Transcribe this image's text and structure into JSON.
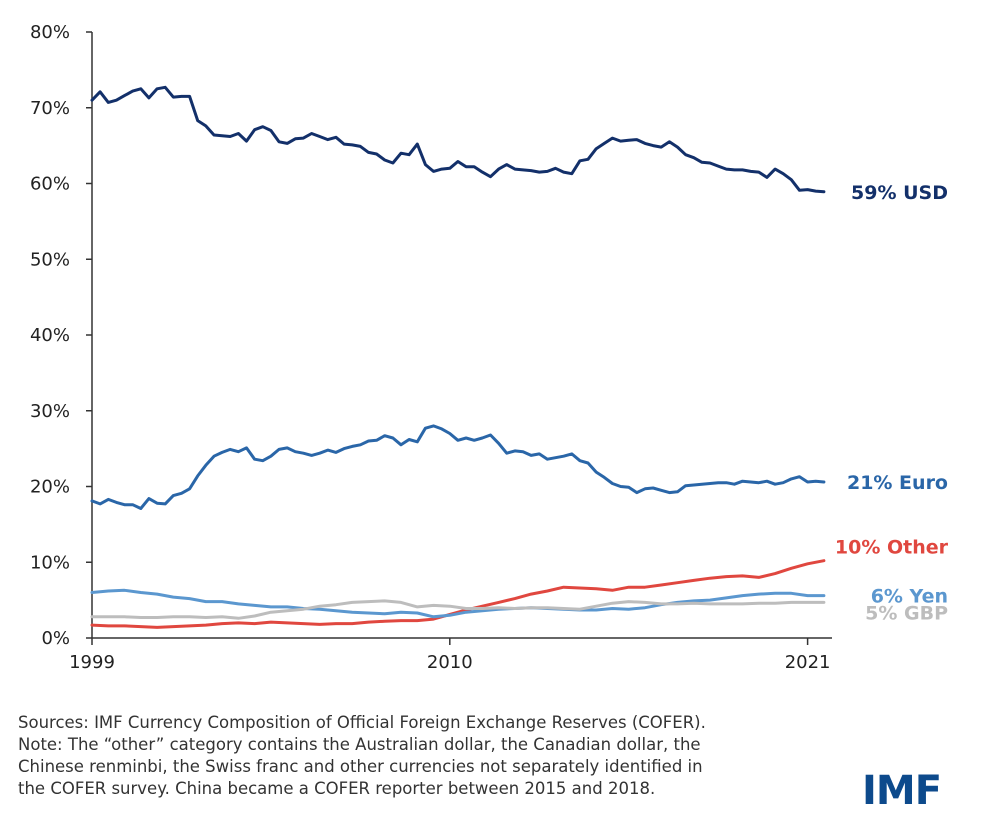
{
  "chart_data": {
    "type": "line",
    "title": "",
    "xlabel": "",
    "ylabel": "",
    "x_ticks": [
      "1999",
      "2010",
      "2021"
    ],
    "y_ticks": [
      "0%",
      "10%",
      "20%",
      "30%",
      "40%",
      "50%",
      "60%",
      "70%",
      "80%"
    ],
    "xlim": [
      1999,
      2021.75
    ],
    "ylim": [
      0,
      80
    ],
    "grid": false,
    "series": [
      {
        "name": "USD",
        "end_label": "59% USD",
        "color": "#13306a",
        "x": [
          1999.0,
          1999.25,
          1999.5,
          1999.75,
          2000.0,
          2000.25,
          2000.5,
          2000.75,
          2001.0,
          2001.25,
          2001.5,
          2001.75,
          2002.0,
          2002.25,
          2002.5,
          2002.75,
          2003.0,
          2003.25,
          2003.5,
          2003.75,
          2004.0,
          2004.25,
          2004.5,
          2004.75,
          2005.0,
          2005.25,
          2005.5,
          2005.75,
          2006.0,
          2006.25,
          2006.5,
          2006.75,
          2007.0,
          2007.25,
          2007.5,
          2007.75,
          2008.0,
          2008.25,
          2008.5,
          2008.75,
          2009.0,
          2009.25,
          2009.5,
          2009.75,
          2010.0,
          2010.25,
          2010.5,
          2010.75,
          2011.0,
          2011.25,
          2011.5,
          2011.75,
          2012.0,
          2012.25,
          2012.5,
          2012.75,
          2013.0,
          2013.25,
          2013.5,
          2013.75,
          2014.0,
          2014.25,
          2014.5,
          2014.75,
          2015.0,
          2015.25,
          2015.5,
          2015.75,
          2016.0,
          2016.25,
          2016.5,
          2016.75,
          2017.0,
          2017.25,
          2017.5,
          2017.75,
          2018.0,
          2018.25,
          2018.5,
          2018.75,
          2019.0,
          2019.25,
          2019.5,
          2019.75,
          2020.0,
          2020.25,
          2020.5,
          2020.75,
          2021.0,
          2021.25,
          2021.5
        ],
        "values": [
          71.0,
          72.1,
          70.7,
          71.0,
          71.6,
          72.2,
          72.5,
          71.3,
          72.5,
          72.7,
          71.4,
          71.5,
          71.5,
          68.3,
          67.6,
          66.4,
          66.3,
          66.2,
          66.6,
          65.6,
          67.1,
          67.5,
          67.0,
          65.5,
          65.3,
          65.9,
          66.0,
          66.6,
          66.2,
          65.8,
          66.1,
          65.2,
          65.1,
          64.9,
          64.1,
          63.9,
          63.1,
          62.7,
          64.0,
          63.8,
          65.2,
          62.5,
          61.6,
          61.9,
          62.0,
          62.9,
          62.2,
          62.2,
          61.5,
          60.9,
          61.9,
          62.5,
          61.9,
          61.8,
          61.7,
          61.5,
          61.6,
          62.0,
          61.5,
          61.3,
          63.0,
          63.2,
          64.6,
          65.3,
          66.0,
          65.6,
          65.7,
          65.8,
          65.3,
          65.0,
          64.8,
          65.5,
          64.8,
          63.8,
          63.4,
          62.8,
          62.7,
          62.3,
          61.9,
          61.8,
          61.8,
          61.6,
          61.5,
          60.8,
          61.9,
          61.3,
          60.5,
          59.1,
          59.2,
          59.0,
          58.9
        ]
      },
      {
        "name": "Euro",
        "end_label": "21% Euro",
        "color": "#2a66a8",
        "x": [
          1999.0,
          1999.25,
          1999.5,
          1999.75,
          2000.0,
          2000.25,
          2000.5,
          2000.75,
          2001.0,
          2001.25,
          2001.5,
          2001.75,
          2002.0,
          2002.25,
          2002.5,
          2002.75,
          2003.0,
          2003.25,
          2003.5,
          2003.75,
          2004.0,
          2004.25,
          2004.5,
          2004.75,
          2005.0,
          2005.25,
          2005.5,
          2005.75,
          2006.0,
          2006.25,
          2006.5,
          2006.75,
          2007.0,
          2007.25,
          2007.5,
          2007.75,
          2008.0,
          2008.25,
          2008.5,
          2008.75,
          2009.0,
          2009.25,
          2009.5,
          2009.75,
          2010.0,
          2010.25,
          2010.5,
          2010.75,
          2011.0,
          2011.25,
          2011.5,
          2011.75,
          2012.0,
          2012.25,
          2012.5,
          2012.75,
          2013.0,
          2013.25,
          2013.5,
          2013.75,
          2014.0,
          2014.25,
          2014.5,
          2014.75,
          2015.0,
          2015.25,
          2015.5,
          2015.75,
          2016.0,
          2016.25,
          2016.5,
          2016.75,
          2017.0,
          2017.25,
          2017.5,
          2017.75,
          2018.0,
          2018.25,
          2018.5,
          2018.75,
          2019.0,
          2019.25,
          2019.5,
          2019.75,
          2020.0,
          2020.25,
          2020.5,
          2020.75,
          2021.0,
          2021.25,
          2021.5
        ],
        "values": [
          18.1,
          17.7,
          18.3,
          17.9,
          17.6,
          17.6,
          17.1,
          18.4,
          17.8,
          17.7,
          18.8,
          19.1,
          19.7,
          21.4,
          22.8,
          24.0,
          24.5,
          24.9,
          24.6,
          25.1,
          23.6,
          23.4,
          24.0,
          24.9,
          25.1,
          24.6,
          24.4,
          24.1,
          24.4,
          24.8,
          24.5,
          25.0,
          25.3,
          25.5,
          26.0,
          26.1,
          26.7,
          26.4,
          25.5,
          26.2,
          25.9,
          27.7,
          28.0,
          27.6,
          27.0,
          26.1,
          26.4,
          26.1,
          26.4,
          26.8,
          25.7,
          24.4,
          24.7,
          24.6,
          24.1,
          24.3,
          23.6,
          23.8,
          24.0,
          24.3,
          23.4,
          23.1,
          21.9,
          21.2,
          20.4,
          20.0,
          19.9,
          19.2,
          19.7,
          19.8,
          19.5,
          19.2,
          19.3,
          20.1,
          20.2,
          20.3,
          20.4,
          20.5,
          20.5,
          20.3,
          20.7,
          20.6,
          20.5,
          20.7,
          20.3,
          20.5,
          21.0,
          21.3,
          20.6,
          20.7,
          20.6
        ]
      },
      {
        "name": "Other",
        "end_label": "10% Other",
        "color": "#e0473f",
        "x": [
          1999.0,
          1999.5,
          2000.0,
          2000.5,
          2001.0,
          2001.5,
          2002.0,
          2002.5,
          2003.0,
          2003.5,
          2004.0,
          2004.5,
          2005.0,
          2005.5,
          2006.0,
          2006.5,
          2007.0,
          2007.5,
          2008.0,
          2008.5,
          2009.0,
          2009.5,
          2010.0,
          2010.5,
          2011.0,
          2011.5,
          2012.0,
          2012.5,
          2013.0,
          2013.5,
          2014.0,
          2014.5,
          2015.0,
          2015.5,
          2016.0,
          2016.5,
          2017.0,
          2017.5,
          2018.0,
          2018.5,
          2019.0,
          2019.5,
          2020.0,
          2020.5,
          2021.0,
          2021.5
        ],
        "values": [
          1.7,
          1.6,
          1.6,
          1.5,
          1.4,
          1.5,
          1.6,
          1.7,
          1.9,
          2.0,
          1.9,
          2.1,
          2.0,
          1.9,
          1.8,
          1.9,
          1.9,
          2.1,
          2.2,
          2.3,
          2.3,
          2.5,
          3.1,
          3.7,
          4.2,
          4.7,
          5.2,
          5.8,
          6.2,
          6.7,
          6.6,
          6.5,
          6.3,
          6.7,
          6.7,
          7.0,
          7.3,
          7.6,
          7.9,
          8.1,
          8.2,
          8.0,
          8.5,
          9.2,
          9.8,
          10.2
        ]
      },
      {
        "name": "Yen",
        "end_label": "6% Yen",
        "color": "#5b97cf",
        "x": [
          1999.0,
          1999.5,
          2000.0,
          2000.5,
          2001.0,
          2001.5,
          2002.0,
          2002.5,
          2003.0,
          2003.5,
          2004.0,
          2004.5,
          2005.0,
          2005.5,
          2006.0,
          2006.5,
          2007.0,
          2007.5,
          2008.0,
          2008.5,
          2009.0,
          2009.5,
          2010.0,
          2010.5,
          2011.0,
          2011.5,
          2012.0,
          2012.5,
          2013.0,
          2013.5,
          2014.0,
          2014.5,
          2015.0,
          2015.5,
          2016.0,
          2016.5,
          2017.0,
          2017.5,
          2018.0,
          2018.5,
          2019.0,
          2019.5,
          2020.0,
          2020.5,
          2021.0,
          2021.5
        ],
        "values": [
          6.0,
          6.2,
          6.3,
          6.0,
          5.8,
          5.4,
          5.2,
          4.8,
          4.8,
          4.5,
          4.3,
          4.1,
          4.1,
          3.9,
          3.8,
          3.6,
          3.4,
          3.3,
          3.2,
          3.4,
          3.3,
          2.8,
          3.0,
          3.4,
          3.6,
          3.8,
          3.9,
          4.0,
          3.9,
          3.8,
          3.7,
          3.7,
          3.9,
          3.8,
          4.0,
          4.4,
          4.7,
          4.9,
          5.0,
          5.3,
          5.6,
          5.8,
          5.9,
          5.9,
          5.6,
          5.6
        ]
      },
      {
        "name": "GBP",
        "end_label": "5% GBP",
        "color": "#bdbdbd",
        "x": [
          1999.0,
          1999.5,
          2000.0,
          2000.5,
          2001.0,
          2001.5,
          2002.0,
          2002.5,
          2003.0,
          2003.5,
          2004.0,
          2004.5,
          2005.0,
          2005.5,
          2006.0,
          2006.5,
          2007.0,
          2007.5,
          2008.0,
          2008.5,
          2009.0,
          2009.5,
          2010.0,
          2010.5,
          2011.0,
          2011.5,
          2012.0,
          2012.5,
          2013.0,
          2013.5,
          2014.0,
          2014.5,
          2015.0,
          2015.5,
          2016.0,
          2016.5,
          2017.0,
          2017.5,
          2018.0,
          2018.5,
          2019.0,
          2019.5,
          2020.0,
          2020.5,
          2021.0,
          2021.5
        ],
        "values": [
          2.8,
          2.8,
          2.8,
          2.7,
          2.7,
          2.8,
          2.8,
          2.7,
          2.8,
          2.6,
          2.9,
          3.4,
          3.6,
          3.8,
          4.2,
          4.4,
          4.7,
          4.8,
          4.9,
          4.7,
          4.1,
          4.3,
          4.2,
          3.9,
          3.9,
          4.0,
          3.9,
          4.0,
          4.0,
          3.9,
          3.8,
          4.2,
          4.6,
          4.8,
          4.7,
          4.5,
          4.5,
          4.6,
          4.5,
          4.5,
          4.5,
          4.6,
          4.6,
          4.7,
          4.7,
          4.7
        ]
      }
    ]
  },
  "notes": {
    "line1": "Sources: IMF Currency Composition of Official Foreign Exchange Reserves (COFER).",
    "line2": "Note: The “other” category contains the Australian dollar, the Canadian dollar, the",
    "line3": "Chinese renminbi, the Swiss franc and other currencies not separately identified in",
    "line4": "the COFER survey. China became a COFER reporter between 2015 and 2018."
  },
  "logo": {
    "text": "IMF",
    "color": "#0d4a8c"
  }
}
